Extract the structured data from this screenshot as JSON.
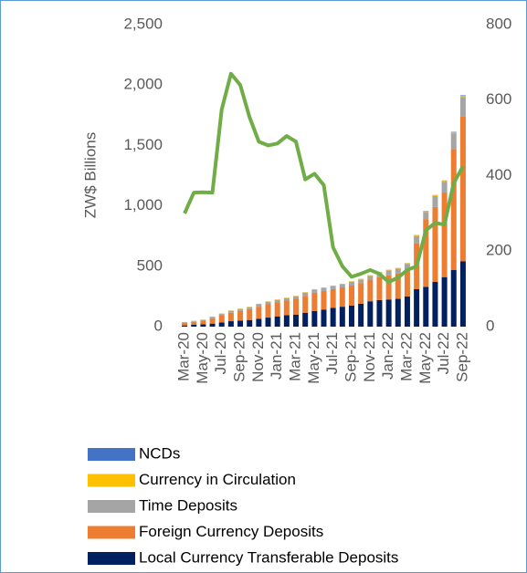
{
  "chart_data": {
    "type": "bar-line",
    "y_label": "ZW$ Billions",
    "categories": [
      "Mar-20",
      null,
      "May-20",
      null,
      "Jul-20",
      null,
      "Sep-20",
      null,
      "Nov-20",
      null,
      "Jan-21",
      null,
      "Mar-21",
      null,
      "May-21",
      null,
      "Jul-21",
      null,
      "Sep-21",
      null,
      "Nov-21",
      null,
      "Jan-22",
      null,
      "Mar-22",
      null,
      "May-22",
      null,
      "Jul-22",
      null,
      "Sep-22"
    ],
    "series": [
      {
        "name": "NCDs",
        "color": "#4472c4",
        "values": [
          1,
          1,
          1,
          1,
          1,
          1,
          1,
          1,
          1,
          1,
          1,
          1,
          1,
          1,
          1,
          1,
          1,
          1,
          1,
          1,
          1,
          1,
          1,
          1,
          1,
          2,
          2,
          2,
          3,
          4,
          5
        ]
      },
      {
        "name": "Currency in Circulation",
        "color": "#ffc000",
        "values": [
          2,
          2,
          2,
          2,
          3,
          3,
          3,
          3,
          3,
          3,
          4,
          4,
          4,
          4,
          4,
          4,
          4,
          4,
          4,
          5,
          5,
          5,
          5,
          5,
          5,
          6,
          6,
          7,
          7,
          8,
          10
        ]
      },
      {
        "name": "Time Deposits",
        "color": "#a5a5a5",
        "values": [
          5,
          5,
          5,
          10,
          10,
          15,
          15,
          15,
          20,
          20,
          20,
          20,
          20,
          25,
          25,
          25,
          25,
          25,
          30,
          30,
          30,
          35,
          40,
          40,
          40,
          60,
          60,
          90,
          90,
          130,
          160
        ]
      },
      {
        "name": "Foreign Currency Deposits",
        "color": "#ed7d31",
        "values": [
          20,
          25,
          30,
          45,
          60,
          70,
          80,
          90,
          100,
          110,
          115,
          120,
          130,
          140,
          150,
          155,
          155,
          160,
          165,
          170,
          180,
          190,
          200,
          210,
          230,
          380,
          560,
          620,
          700,
          1000,
          1200
        ]
      },
      {
        "name": "Local Currency Transferable Deposits",
        "color": "#002060",
        "values": [
          10,
          15,
          20,
          25,
          35,
          45,
          50,
          55,
          65,
          75,
          85,
          95,
          100,
          115,
          130,
          140,
          155,
          165,
          175,
          190,
          210,
          220,
          225,
          230,
          250,
          310,
          330,
          370,
          410,
          470,
          540
        ]
      },
      {
        "name": null,
        "type": "line",
        "axis": "y2",
        "color": "#70ad47",
        "values": [
          300,
          355,
          356,
          355,
          575,
          670,
          640,
          555,
          490,
          480,
          485,
          505,
          490,
          390,
          405,
          375,
          210,
          160,
          132,
          140,
          150,
          140,
          118,
          130,
          150,
          160,
          255,
          275,
          270,
          380,
          425
        ]
      }
    ],
    "ylim": [
      0,
      2500
    ],
    "yticks": [
      0,
      500,
      {
        "value": 1000,
        "label": "1,000"
      },
      {
        "value": 1500,
        "label": "1,500"
      },
      {
        "value": 2000,
        "label": "2,000"
      },
      {
        "value": 2500,
        "label": "2,500"
      }
    ],
    "y2lim": [
      0,
      800
    ],
    "y2ticks": [
      0,
      200,
      400,
      600,
      800
    ]
  }
}
